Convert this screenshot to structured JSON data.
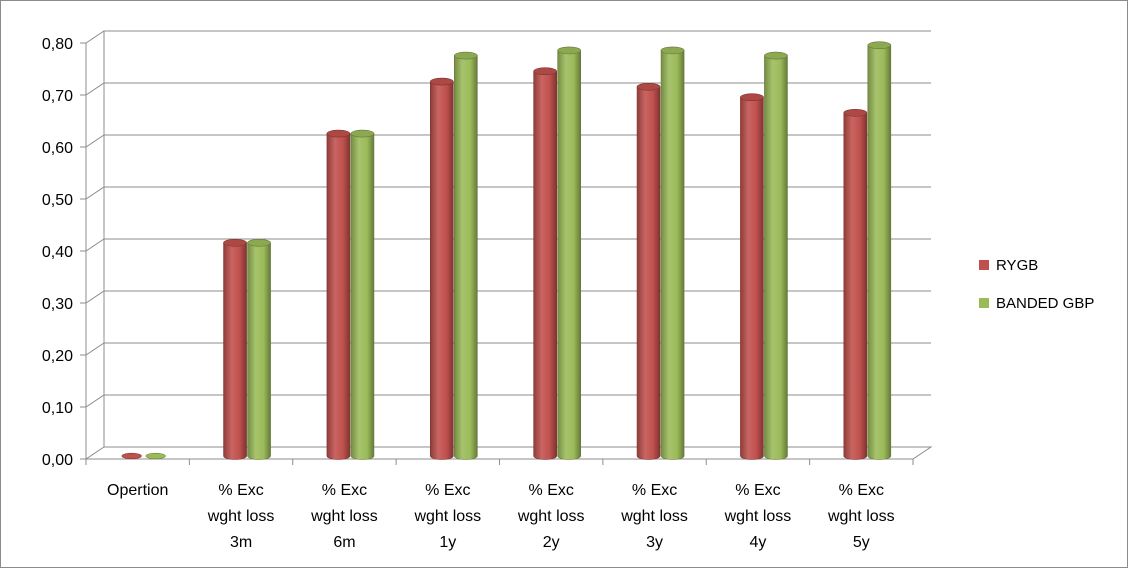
{
  "chart_data": {
    "type": "bar",
    "categories": [
      [
        "Opertion"
      ],
      [
        "% Exc",
        "wght loss",
        "3m"
      ],
      [
        "% Exc",
        "wght loss",
        "6m"
      ],
      [
        "% Exc",
        "wght loss",
        "1y"
      ],
      [
        "% Exc",
        "wght loss",
        "2y"
      ],
      [
        "% Exc",
        "wght loss",
        "3y"
      ],
      [
        "% Exc",
        "wght loss",
        "4y"
      ],
      [
        "% Exc",
        "wght loss",
        "5y"
      ]
    ],
    "series": [
      {
        "name": "RYGB",
        "color": "#c0504d",
        "values": [
          0.0,
          0.41,
          0.62,
          0.72,
          0.74,
          0.71,
          0.69,
          0.66
        ]
      },
      {
        "name": "BANDED GBP",
        "color": "#9bbb59",
        "values": [
          0.0,
          0.41,
          0.62,
          0.77,
          0.78,
          0.78,
          0.77,
          0.79
        ]
      }
    ],
    "yticks": [
      "0,00",
      "0,10",
      "0,20",
      "0,30",
      "0,40",
      "0,50",
      "0,60",
      "0,70",
      "0,80"
    ],
    "ylim": [
      0,
      0.8
    ],
    "grid": true,
    "legend_position": "right",
    "style": "3d-cylinder"
  }
}
